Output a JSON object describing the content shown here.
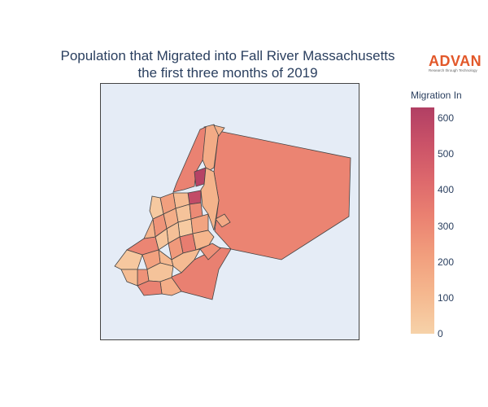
{
  "title_line1": "Population that Migrated into Fall River Massachusetts",
  "title_line2": "the first three months of 2019",
  "logo": {
    "word": "ADVAN",
    "tagline": "Research through Technology"
  },
  "colorbar": {
    "title": "Migration In",
    "ticks": [
      "600",
      "500",
      "400",
      "300",
      "200",
      "100",
      "0"
    ],
    "range": [
      0,
      630
    ],
    "colors": [
      "#f6d2a9",
      "#f5b78e",
      "#f19c7c",
      "#ea8171",
      "#dd686c",
      "#ca5268",
      "#b13f64"
    ]
  },
  "map": {
    "background": "#e5ecf6",
    "border_color": "#444444",
    "regions": [
      {
        "id": "northeast-large",
        "value": 305
      },
      {
        "id": "north-strip",
        "value": 150
      },
      {
        "id": "north-tip",
        "value": 130
      },
      {
        "id": "west-strip",
        "value": 310
      },
      {
        "id": "high-tract-1",
        "value": 610
      },
      {
        "id": "high-tract-2",
        "value": 560
      },
      {
        "id": "east-center",
        "value": 120
      },
      {
        "id": "south-east",
        "value": 320
      },
      {
        "id": "south-tip",
        "value": 260
      },
      {
        "id": "center-1",
        "value": 90
      },
      {
        "id": "center-2",
        "value": 200
      },
      {
        "id": "center-3",
        "value": 60
      },
      {
        "id": "center-4",
        "value": 280
      },
      {
        "id": "center-5",
        "value": 140
      },
      {
        "id": "center-6",
        "value": 30
      },
      {
        "id": "center-7",
        "value": 180
      },
      {
        "id": "center-8",
        "value": 240
      },
      {
        "id": "center-9",
        "value": 70
      },
      {
        "id": "center-10",
        "value": 330
      },
      {
        "id": "center-11",
        "value": 110
      },
      {
        "id": "center-12",
        "value": 50
      },
      {
        "id": "center-13",
        "value": 220
      },
      {
        "id": "center-14",
        "value": 160
      },
      {
        "id": "center-15",
        "value": 100
      },
      {
        "id": "sw-1",
        "value": 300
      },
      {
        "id": "sw-2",
        "value": 120
      },
      {
        "id": "sw-3",
        "value": 40
      },
      {
        "id": "sw-4",
        "value": 190
      },
      {
        "id": "sw-5",
        "value": 250
      },
      {
        "id": "sw-6",
        "value": 80
      },
      {
        "id": "s-1",
        "value": 60
      },
      {
        "id": "s-2",
        "value": 140
      },
      {
        "id": "s-3",
        "value": 310
      },
      {
        "id": "s-4",
        "value": 90
      },
      {
        "id": "s-5",
        "value": 35
      }
    ]
  }
}
